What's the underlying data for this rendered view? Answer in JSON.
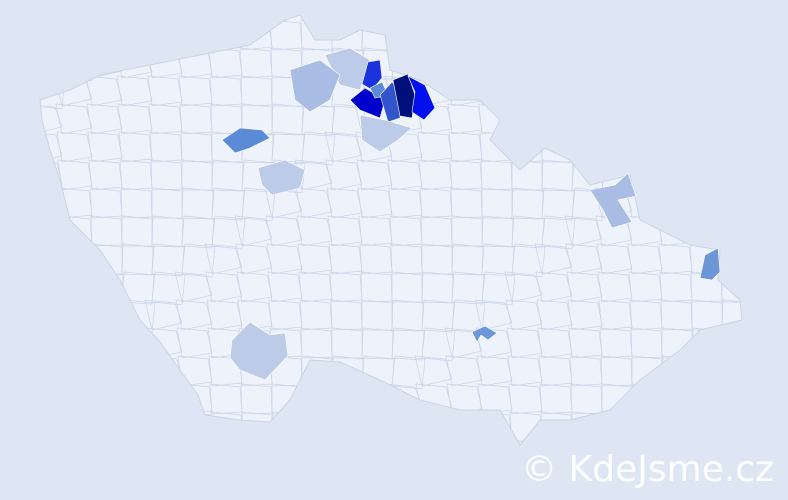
{
  "map": {
    "country_fill": "#eef2fa",
    "border_color": "#c9d4e8",
    "regions": [
      {
        "name": "region-darkest",
        "color": "#00107a"
      },
      {
        "name": "region-bright-blue",
        "color": "#0011ee"
      },
      {
        "name": "region-strong-blue",
        "color": "#0000cc"
      },
      {
        "name": "region-blue",
        "color": "#1a33dd"
      },
      {
        "name": "region-mid-blue",
        "color": "#3355cc"
      },
      {
        "name": "region-steel",
        "color": "#5b8bd6"
      },
      {
        "name": "region-medium",
        "color": "#6c96d8"
      },
      {
        "name": "region-light",
        "color": "#a9bce4"
      },
      {
        "name": "region-pale",
        "color": "#bccbe8"
      }
    ]
  },
  "watermark": {
    "text": "© KdeJsme.cz"
  }
}
